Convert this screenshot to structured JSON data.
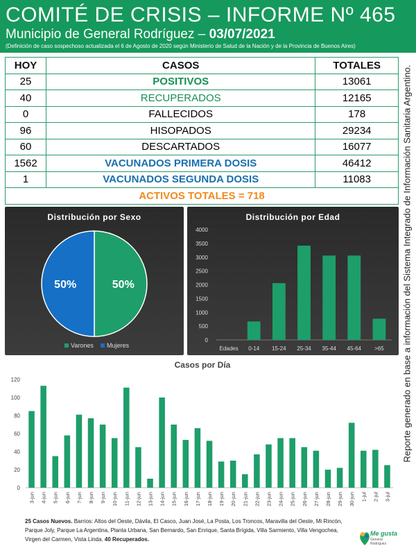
{
  "header": {
    "title": "COMITÉ DE CRISIS – INFORME Nº 465",
    "subtitle_prefix": "Municipio de General Rodríguez – ",
    "date": "03/07/2021",
    "note": "(Definición de caso sospechoso actualizada el 6 de Agosto de 2020 según Ministerio de Salud de la Nación y de la Provincia de Buenos Aires)"
  },
  "summary": {
    "headers": [
      "HOY",
      "CASOS",
      "TOTALES"
    ],
    "rows": [
      {
        "hoy": "25",
        "casos": "POSITIVOS",
        "totales": "13061",
        "style": "green"
      },
      {
        "hoy": "40",
        "casos": "RECUPERADOS",
        "totales": "12165",
        "style": "lgreen"
      },
      {
        "hoy": "0",
        "casos": "FALLECIDOS",
        "totales": "178",
        "style": ""
      },
      {
        "hoy": "96",
        "casos": "HISOPADOS",
        "totales": "29234",
        "style": ""
      },
      {
        "hoy": "60",
        "casos": "DESCARTADOS",
        "totales": "16077",
        "style": ""
      },
      {
        "hoy": "1562",
        "casos": "VACUNADOS PRIMERA DOSIS",
        "totales": "46412",
        "style": "blue"
      },
      {
        "hoy": "1",
        "casos": "VACUNADOS SEGUNDA DOSIS",
        "totales": "11083",
        "style": "blue"
      }
    ],
    "activos": "ACTIVOS TOTALES = 718"
  },
  "sidebar_text": "Reporte generado en base a información del Sistema Integrado de Información Sanitaria Argentino.",
  "chart_data": [
    {
      "type": "pie",
      "title": "Distribución por Sexo",
      "categories": [
        "Varones",
        "Mujeres"
      ],
      "values": [
        50,
        50
      ],
      "labels": [
        "50%",
        "50%"
      ],
      "colors": [
        "#1e9e6a",
        "#1570c6"
      ],
      "legend": "bottom"
    },
    {
      "type": "bar",
      "title": "Distribución por Edad",
      "xlabel": "Edades",
      "categories": [
        "0-14",
        "15-24",
        "25-34",
        "35-44",
        "45-64",
        ">65"
      ],
      "values": [
        670,
        2060,
        3420,
        3060,
        3060,
        770
      ],
      "ylim": [
        0,
        4000
      ],
      "yticks": [
        0,
        500,
        1000,
        1500,
        2000,
        2500,
        3000,
        3500,
        4000
      ],
      "color": "#1e9e6a"
    },
    {
      "type": "bar",
      "title": "Casos por Día",
      "categories": [
        "3-jun",
        "4-jun",
        "5-jun",
        "6-jun",
        "7-jun",
        "8-jun",
        "9-jun",
        "10-jun",
        "11-jun",
        "12-jun",
        "13-jun",
        "14-jun",
        "15-jun",
        "16-jun",
        "17-jun",
        "18-jun",
        "19-jun",
        "20-jun",
        "21-jun",
        "22-jun",
        "23-jun",
        "24-jun",
        "25-jun",
        "26-jun",
        "27-jun",
        "28-jun",
        "29-jun",
        "30-jun",
        "1-jul",
        "2-jul",
        "3-jul"
      ],
      "values": [
        85,
        113,
        35,
        58,
        81,
        77,
        70,
        55,
        111,
        45,
        10,
        100,
        70,
        53,
        66,
        52,
        29,
        30,
        15,
        37,
        48,
        55,
        55,
        45,
        41,
        20,
        22,
        72,
        41,
        42,
        25
      ],
      "ylim": [
        0,
        120
      ],
      "yticks": [
        0,
        20,
        40,
        60,
        80,
        100,
        120
      ],
      "color": "#1e9e6a"
    }
  ],
  "footer": {
    "lead": "25 Casos Nuevos.",
    "body": " Barrios: Altos del Oeste, Dávila, El Casco, Juan José, La Posta, Los Troncos, Maravilla del Oeste, Mi Rincón, Parque Joly, Parque La Argentina, Planta Urbana, San Bernardo, San Enrique, Santa Brígida, Villa Sarmiento, Villa Vengochea, Virgen del Carmen, Vista Linda. ",
    "tail": "40 Recuperados."
  },
  "logo": {
    "text": "Me gusta",
    "sub": "General Rodríguez"
  }
}
